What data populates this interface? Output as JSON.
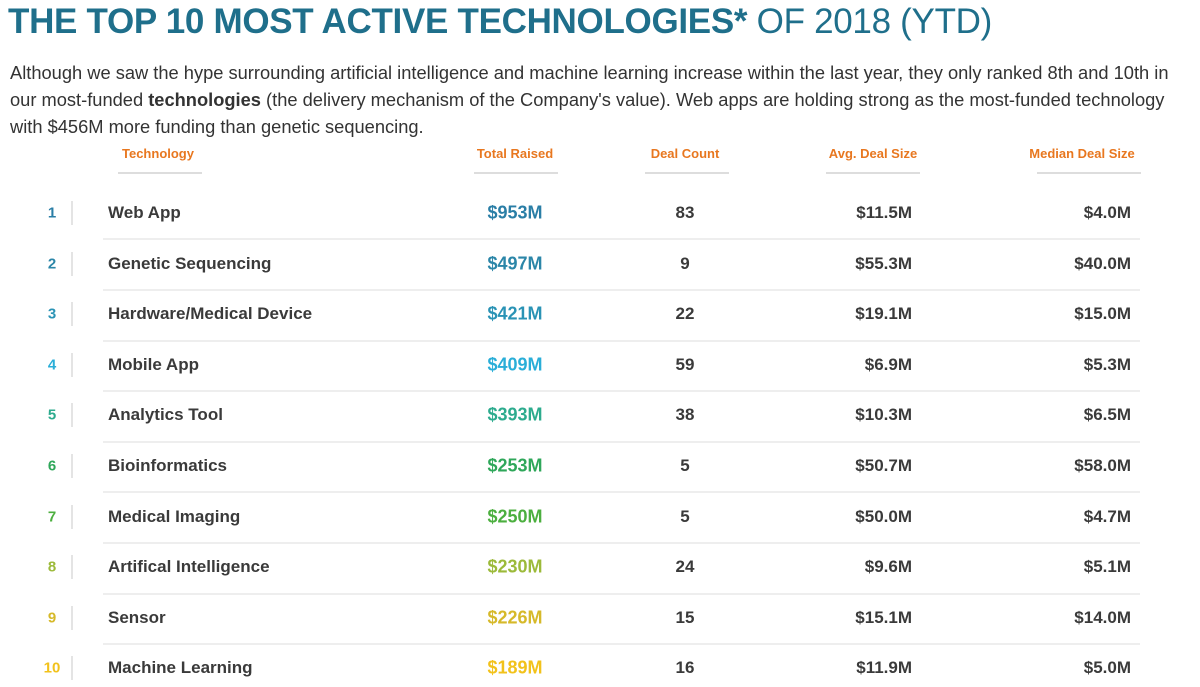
{
  "title": {
    "bold": "THE TOP 10 MOST ACTIVE TECHNOLOGIES*",
    "light": " OF 2018 (YTD)"
  },
  "intro": {
    "before": "Although we saw the hype surrounding artificial intelligence and machine learning increase within the last year, they only ranked 8th and 10th in our most-funded ",
    "bold": "technologies",
    "after": " (the delivery mechanism of the Company's value). Web apps are holding strong as the most-funded technology with $456M more funding than genetic sequencing."
  },
  "table": {
    "headers": [
      "Technology",
      "Total Raised",
      "Deal Count",
      "Avg. Deal Size",
      "Median Deal Size"
    ],
    "rows": [
      [
        "1",
        "Web App",
        "$953M",
        "83",
        "$11.5M",
        "$4.0M"
      ],
      [
        "2",
        "Genetic Sequencing",
        "$497M",
        "9",
        "$55.3M",
        "$40.0M"
      ],
      [
        "3",
        "Hardware/Medical Device",
        "$421M",
        "22",
        "$19.1M",
        "$15.0M"
      ],
      [
        "4",
        "Mobile App",
        "$409M",
        "59",
        "$6.9M",
        "$5.3M"
      ],
      [
        "5",
        "Analytics Tool",
        "$393M",
        "38",
        "$10.3M",
        "$6.5M"
      ],
      [
        "6",
        "Bioinformatics",
        "$253M",
        "5",
        "$50.7M",
        "$58.0M"
      ],
      [
        "7",
        "Medical Imaging",
        "$250M",
        "5",
        "$50.0M",
        "$4.7M"
      ],
      [
        "8",
        "Artifical Intelligence",
        "$230M",
        "24",
        "$9.6M",
        "$5.1M"
      ],
      [
        "9",
        "Sensor",
        "$226M",
        "15",
        "$15.1M",
        "$14.0M"
      ],
      [
        "10",
        "Machine Learning",
        "$189M",
        "16",
        "$11.9M",
        "$5.0M"
      ]
    ]
  }
}
